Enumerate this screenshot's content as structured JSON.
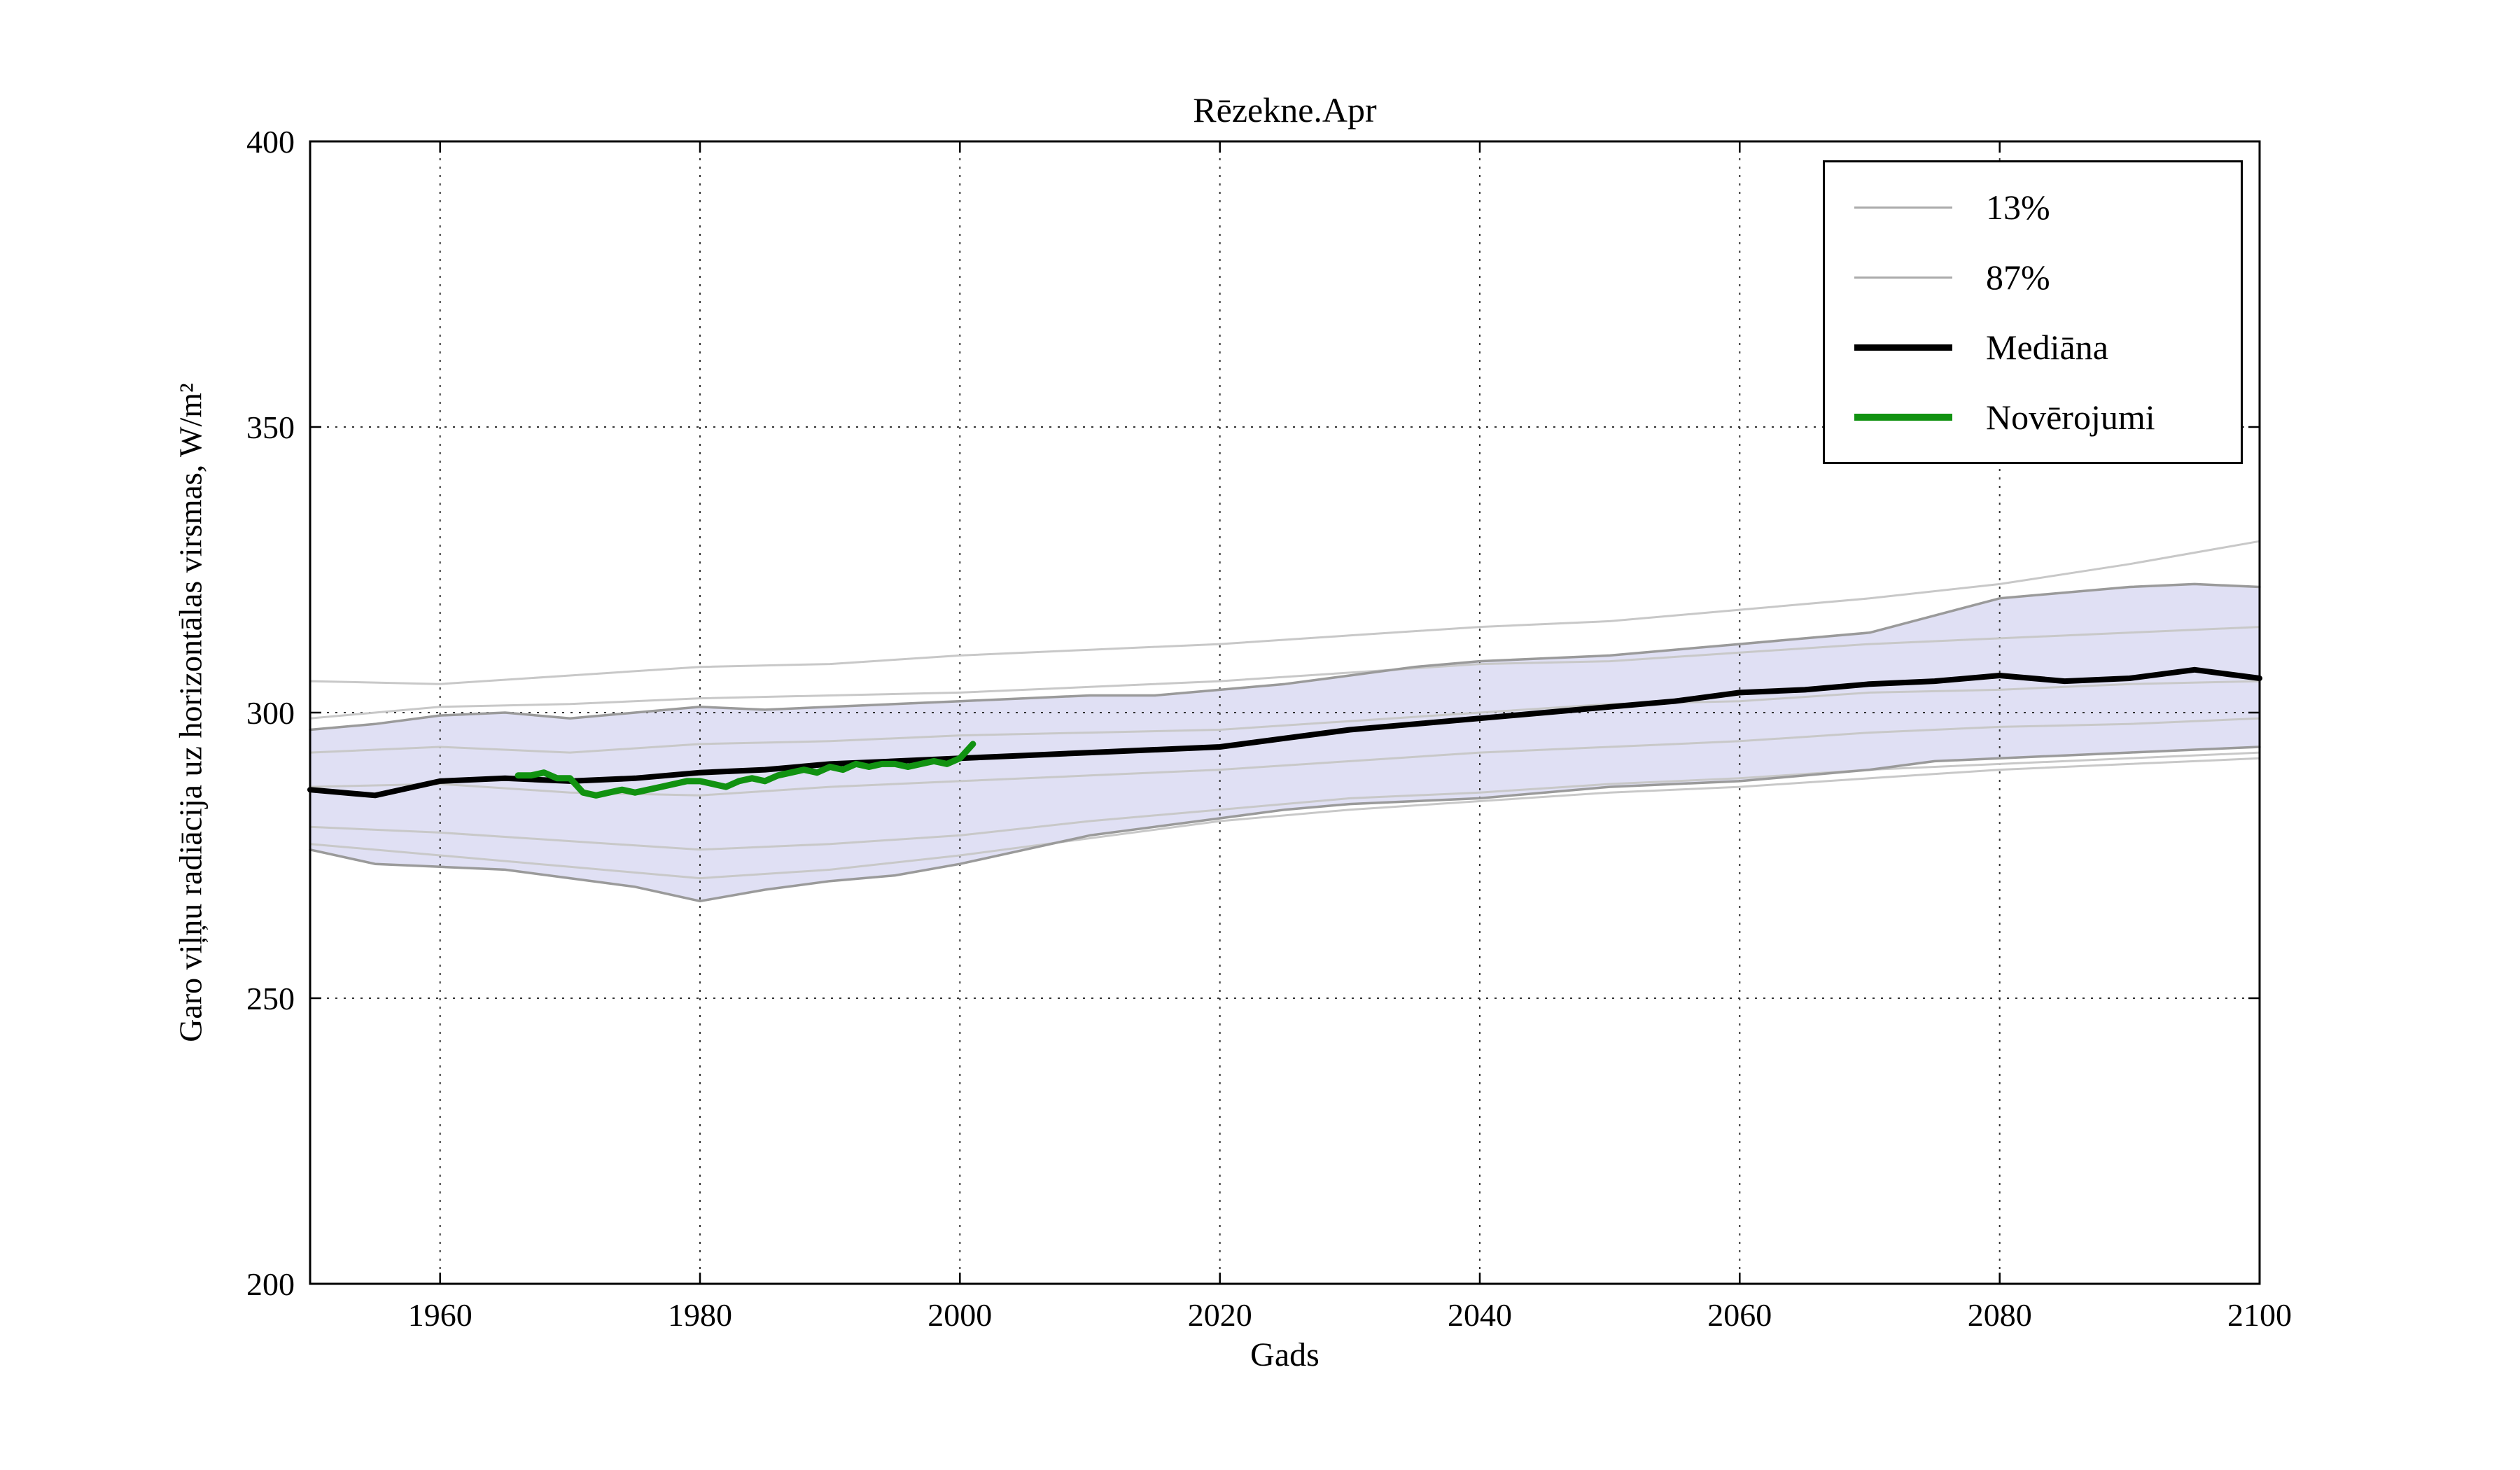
{
  "chart_data": {
    "type": "line",
    "title": "Rēzekne.Apr",
    "xlabel": "Gads",
    "ylabel": "Garo viļņu radiācija uz horizontālas virsmas, W/m²",
    "xlim": [
      1950,
      2100
    ],
    "ylim": [
      200,
      400
    ],
    "xticks": [
      1960,
      1980,
      2000,
      2020,
      2040,
      2060,
      2080,
      2100
    ],
    "yticks": [
      200,
      250,
      300,
      350,
      400
    ],
    "grid": "dotted",
    "band_fill": "#dadaf2",
    "legend": {
      "position": "upper right",
      "entries": [
        {
          "label": "13%",
          "color": "#ababab",
          "sample_height": 3
        },
        {
          "label": "87%",
          "color": "#ababab",
          "sample_height": 3
        },
        {
          "label": "Mediāna",
          "color": "#000000",
          "sample_height": 9
        },
        {
          "label": "Novērojumi",
          "color": "#119211",
          "sample_height": 10
        }
      ]
    },
    "series": [
      {
        "name": "13%",
        "role": "band_lower",
        "color": "#9a9a9a",
        "width": 3.5,
        "x": [
          1950,
          1955,
          1960,
          1965,
          1970,
          1975,
          1980,
          1985,
          1990,
          1995,
          2000,
          2005,
          2010,
          2015,
          2020,
          2025,
          2030,
          2035,
          2040,
          2045,
          2050,
          2055,
          2060,
          2065,
          2070,
          2075,
          2080,
          2085,
          2090,
          2095,
          2100
        ],
        "values": [
          276,
          273.5,
          273,
          272.5,
          271,
          269.5,
          267,
          269,
          270.5,
          271.5,
          273.5,
          276,
          278.5,
          280,
          281.5,
          283,
          284,
          284.5,
          285,
          286,
          287,
          287.5,
          288,
          289,
          290,
          291.5,
          292,
          292.5,
          293,
          293.5,
          294
        ]
      },
      {
        "name": "87%",
        "role": "band_upper",
        "color": "#9a9a9a",
        "width": 3.5,
        "x": [
          1950,
          1955,
          1960,
          1965,
          1970,
          1975,
          1980,
          1985,
          1990,
          1995,
          2000,
          2005,
          2010,
          2015,
          2020,
          2025,
          2030,
          2035,
          2040,
          2045,
          2050,
          2055,
          2060,
          2065,
          2070,
          2075,
          2080,
          2085,
          2090,
          2095,
          2100
        ],
        "values": [
          297,
          298,
          299.5,
          300,
          299,
          300,
          301,
          300.5,
          301,
          301.5,
          302,
          302.5,
          303,
          303,
          304,
          305,
          306.5,
          308,
          309,
          309.5,
          310,
          311,
          312,
          313,
          314,
          317,
          320,
          321,
          322,
          322.5,
          322
        ]
      },
      {
        "name": "Mediāna",
        "role": "median",
        "color": "#000000",
        "width": 8,
        "x": [
          1950,
          1955,
          1960,
          1965,
          1970,
          1975,
          1980,
          1985,
          1990,
          1995,
          2000,
          2005,
          2010,
          2015,
          2020,
          2025,
          2030,
          2035,
          2040,
          2045,
          2050,
          2055,
          2060,
          2065,
          2070,
          2075,
          2080,
          2085,
          2090,
          2095,
          2100
        ],
        "values": [
          286.5,
          285.5,
          288,
          288.5,
          288,
          288.5,
          289.5,
          290,
          291,
          291.5,
          292,
          292.5,
          293,
          293.5,
          294,
          295.5,
          297,
          298,
          299,
          300,
          301,
          302,
          303.5,
          304,
          305,
          305.5,
          306.5,
          305.5,
          306,
          307.5,
          306
        ]
      },
      {
        "name": "Novērojumi",
        "role": "observations",
        "color": "#119211",
        "width": 9,
        "x": [
          1966,
          1967,
          1968,
          1969,
          1970,
          1971,
          1972,
          1973,
          1974,
          1975,
          1976,
          1977,
          1978,
          1979,
          1980,
          1981,
          1982,
          1983,
          1984,
          1985,
          1986,
          1987,
          1988,
          1989,
          1990,
          1991,
          1992,
          1993,
          1994,
          1995,
          1996,
          1997,
          1998,
          1999,
          2000,
          2001
        ],
        "values": [
          289,
          289,
          289.5,
          288.5,
          288.5,
          286,
          285.5,
          286,
          286.5,
          286,
          286.5,
          287,
          287.5,
          288,
          288,
          287.5,
          287,
          288,
          288.5,
          288,
          289,
          289.5,
          290,
          289.5,
          290.5,
          290,
          291,
          290.5,
          291,
          291,
          290.5,
          291,
          291.5,
          291,
          292,
          294.5
        ]
      }
    ],
    "ensemble_members": [
      {
        "color": "#c8c8c8",
        "width": 3,
        "x": [
          1950,
          1960,
          1970,
          1980,
          1990,
          2000,
          2010,
          2020,
          2030,
          2040,
          2050,
          2060,
          2070,
          2080,
          2090,
          2100
        ],
        "values": [
          305.5,
          305,
          306.5,
          308,
          308.5,
          310,
          311,
          312,
          313.5,
          315,
          316,
          318,
          320,
          322.5,
          326,
          330
        ]
      },
      {
        "color": "#c8c8c8",
        "width": 3,
        "x": [
          1950,
          1960,
          1970,
          1980,
          1990,
          2000,
          2010,
          2020,
          2030,
          2040,
          2050,
          2060,
          2070,
          2080,
          2090,
          2100
        ],
        "values": [
          299,
          301,
          301.5,
          302.5,
          303,
          303.5,
          304.5,
          305.5,
          307,
          308.5,
          309,
          310.5,
          312,
          313,
          314,
          315
        ]
      },
      {
        "color": "#c8c8c8",
        "width": 3,
        "x": [
          1950,
          1960,
          1970,
          1980,
          1990,
          2000,
          2010,
          2020,
          2030,
          2040,
          2050,
          2060,
          2070,
          2080,
          2090,
          2100
        ],
        "values": [
          293,
          294,
          293,
          294.5,
          295,
          296,
          296.5,
          297,
          298.5,
          300,
          301.5,
          302,
          303.5,
          304,
          305,
          305.5
        ]
      },
      {
        "color": "#c8c8c8",
        "width": 3,
        "x": [
          1950,
          1960,
          1970,
          1980,
          1990,
          2000,
          2010,
          2020,
          2030,
          2040,
          2050,
          2060,
          2070,
          2080,
          2090,
          2100
        ],
        "values": [
          280,
          279,
          277.5,
          276,
          277,
          278.5,
          281,
          283,
          285,
          286,
          287.5,
          288.5,
          290,
          291,
          292,
          293
        ]
      },
      {
        "color": "#c8c8c8",
        "width": 3,
        "x": [
          1950,
          1960,
          1970,
          1980,
          1990,
          2000,
          2010,
          2020,
          2030,
          2040,
          2050,
          2060,
          2070,
          2080,
          2090,
          2100
        ],
        "values": [
          287,
          287.5,
          286,
          285.5,
          287,
          288,
          289,
          290,
          291.5,
          293,
          294,
          295,
          296.5,
          297.5,
          298,
          299
        ]
      },
      {
        "color": "#c8c8c8",
        "width": 3,
        "x": [
          1950,
          1960,
          1970,
          1980,
          1990,
          2000,
          2010,
          2020,
          2030,
          2040,
          2050,
          2060,
          2070,
          2080,
          2090,
          2100
        ],
        "values": [
          277,
          275,
          273,
          271,
          272.5,
          275,
          278,
          281,
          283,
          284.5,
          286,
          287,
          288.5,
          290,
          291,
          292
        ]
      }
    ]
  }
}
